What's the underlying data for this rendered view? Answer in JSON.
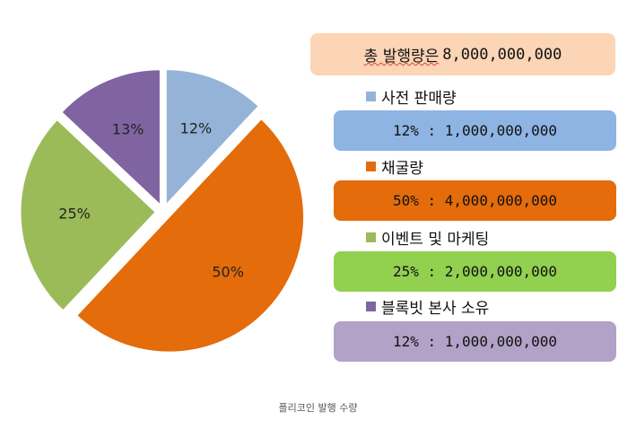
{
  "chart_data": {
    "type": "pie",
    "slices": [
      {
        "label": "12%",
        "value": 12,
        "color": "#95b3d7"
      },
      {
        "label": "50%",
        "value": 50,
        "color": "#e46c0a"
      },
      {
        "label": "25%",
        "value": 25,
        "color": "#9bbb59"
      },
      {
        "label": "13%",
        "value": 13,
        "color": "#8064a2"
      }
    ]
  },
  "summary": {
    "total_label": "총 발행량은",
    "total_value": "8,000,000,000"
  },
  "legend": [
    {
      "name": "사전 판매량",
      "swatch": "#95b3d7",
      "value_text": "12% : 1,000,000,000",
      "box_color": "#8eb4e3"
    },
    {
      "name": "채굴량",
      "swatch": "#e46c0a",
      "value_text": "50% : 4,000,000,000",
      "box_color": "#e46c0a"
    },
    {
      "name": "이벤트 및 마케팅",
      "swatch": "#9bbb59",
      "value_text": "25% : 2,000,000,000",
      "box_color": "#92d050"
    },
    {
      "name": "블록빗 본사 소유",
      "swatch": "#8064a2",
      "value_text": "12% : 1,000,000,000",
      "box_color": "#b3a2c7"
    }
  ],
  "caption": "플리코인 발행 수량"
}
